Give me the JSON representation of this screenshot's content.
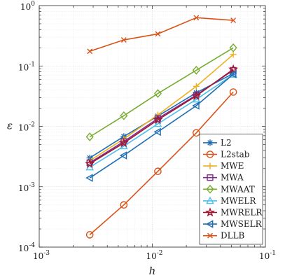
{
  "chart_data": {
    "type": "line",
    "title": "",
    "xlabel": "h",
    "ylabel": "ε",
    "xscale": "log",
    "yscale": "log",
    "xlim": [
      0.001,
      0.1
    ],
    "ylim": [
      0.0001,
      1
    ],
    "grid": true,
    "legend_position": "bottom-right",
    "x_ticks": [
      {
        "value": 0.001,
        "base": "10",
        "exp": "-3"
      },
      {
        "value": 0.01,
        "base": "10",
        "exp": "-2"
      },
      {
        "value": 0.1,
        "base": "10",
        "exp": "-1"
      }
    ],
    "y_ticks": [
      {
        "value": 0.0001,
        "base": "10",
        "exp": "-4"
      },
      {
        "value": 0.001,
        "base": "10",
        "exp": "-3"
      },
      {
        "value": 0.01,
        "base": "10",
        "exp": "-2"
      },
      {
        "value": 0.1,
        "base": "10",
        "exp": "-1"
      },
      {
        "value": 1,
        "base": "10",
        "exp": "0"
      }
    ],
    "x": [
      0.0028,
      0.0056,
      0.0112,
      0.0245,
      0.052
    ],
    "series": [
      {
        "name": "L2",
        "color": "#1f6eb5",
        "marker": "asterisk",
        "values": [
          0.003,
          0.0068,
          0.0148,
          0.036,
          0.075
        ]
      },
      {
        "name": "L2stab",
        "color": "#d95319",
        "marker": "circle",
        "values": [
          0.00016,
          0.0005,
          0.0018,
          0.0078,
          0.037
        ]
      },
      {
        "name": "MWE",
        "color": "#edb120",
        "marker": "plus",
        "values": [
          0.0027,
          0.0062,
          0.0155,
          0.046,
          0.155
        ]
      },
      {
        "name": "MWA",
        "color": "#7e2f8e",
        "marker": "square",
        "values": [
          0.0025,
          0.0056,
          0.0135,
          0.033,
          0.085
        ]
      },
      {
        "name": "MWAAT",
        "color": "#77ac30",
        "marker": "diamond",
        "values": [
          0.0067,
          0.015,
          0.035,
          0.085,
          0.2
        ]
      },
      {
        "name": "MWELR",
        "color": "#4dbeee",
        "marker": "triangle-up",
        "values": [
          0.0021,
          0.0047,
          0.011,
          0.028,
          0.072
        ]
      },
      {
        "name": "MWRELR",
        "color": "#a2142f",
        "marker": "star",
        "values": [
          0.0024,
          0.0053,
          0.0128,
          0.032,
          0.088
        ]
      },
      {
        "name": "MWSELR",
        "color": "#1f6eb5",
        "marker": "triangle-left",
        "values": [
          0.0014,
          0.0033,
          0.0081,
          0.022,
          0.073
        ]
      },
      {
        "name": "DLLB",
        "color": "#d95319",
        "marker": "x",
        "values": [
          0.175,
          0.27,
          0.34,
          0.63,
          0.57
        ]
      }
    ]
  }
}
